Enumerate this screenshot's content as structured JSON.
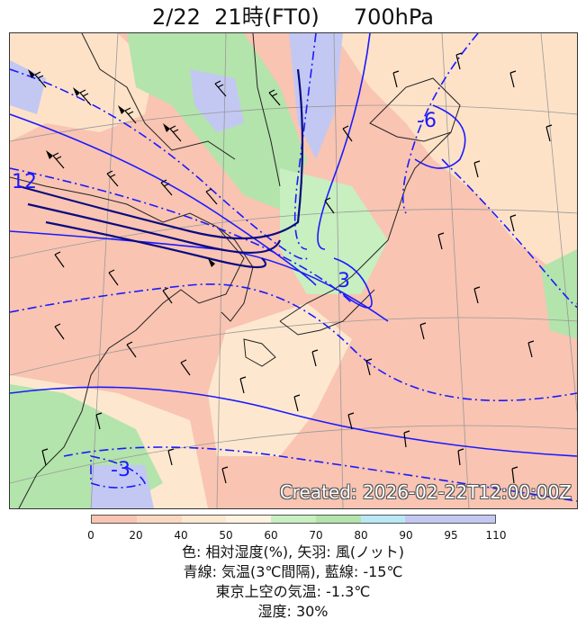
{
  "title": "2/22  21時(FT0)     700hPa",
  "created": "Created: 2026-02-22T12:00:00Z",
  "map_labels": [
    {
      "text": "12",
      "kind": "temperature-contour-label"
    },
    {
      "text": "-6",
      "kind": "temperature-contour-label"
    },
    {
      "text": "3",
      "kind": "temperature-contour-label"
    },
    {
      "text": "-3",
      "kind": "temperature-contour-label"
    }
  ],
  "colorbar": {
    "ticks": [
      "0",
      "20",
      "40",
      "50",
      "60",
      "70",
      "80",
      "90",
      "95",
      "110"
    ],
    "colors": [
      "#f9c4b2",
      "#fbd7c0",
      "#fde8cf",
      "#fff3df",
      "#c7efc0",
      "#b3e4ab",
      "#b9e8f5",
      "#c3c8f2",
      "#c3c8f2"
    ]
  },
  "legend": {
    "line1": "色: 相対湿度(%),  矢羽: 風(ノット)",
    "line2": "青線: 気温(3℃間隔), 藍線: -15℃",
    "line3": "東京上空の気温: -1.3℃",
    "line4": "湿度: 30%"
  },
  "colors": {
    "contour": "#1a1aff",
    "contour_dark": "#0a0a80",
    "humidity_low": "#f9c4b2",
    "humidity_high": "#c3c8f2",
    "humidity_moist": "#b3e4ab"
  }
}
